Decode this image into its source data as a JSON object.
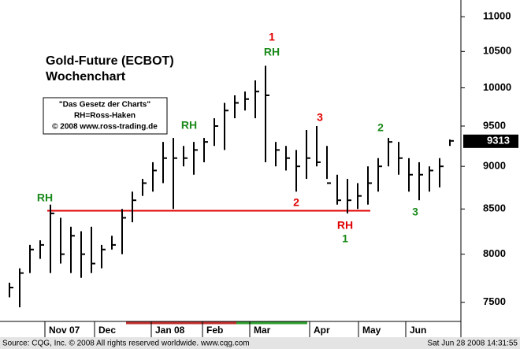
{
  "chart_data": {
    "type": "ohlc",
    "title": "Gold-Future (ECBOT)",
    "subtitle": "Wochenchart",
    "info_box": [
      "\"Das Gesetz der Charts\"",
      "RH=Ross-Haken",
      "© 2008 www.ross-trading.de"
    ],
    "source": "Source: CQG, Inc. © 2008 All rights reserved worldwide. www.cqg.com",
    "timestamp": "Sat Jun 28 2008 14:31:55",
    "log_scale": true,
    "ylim": [
      7310,
      11250
    ],
    "yticks": [
      7500,
      8000,
      8500,
      9000,
      9500,
      10000,
      10500,
      11000
    ],
    "month_labels": [
      "Nov 07",
      "Dec",
      "Jan 08",
      "Feb",
      "Mar",
      "Apr",
      "May",
      "Jun"
    ],
    "bar_color": "#000000",
    "series": [
      {
        "name": "High",
        "values": [
          7700,
          7850,
          8100,
          8150,
          8550,
          8400,
          8300,
          8250,
          8300,
          8100,
          8200,
          8500,
          8700,
          8850,
          9050,
          9300,
          9350,
          9250,
          9300,
          9350,
          9600,
          9800,
          9900,
          9950,
          10100,
          10300,
          9300,
          9250,
          9200,
          9450,
          9500,
          9250,
          8900,
          8850,
          8800,
          9000,
          9100,
          9350,
          9300,
          9100,
          9050,
          9000,
          9100,
          9330
        ]
      },
      {
        "name": "Low",
        "values": [
          7550,
          7450,
          7800,
          7950,
          7800,
          7900,
          7800,
          7750,
          7800,
          7850,
          8050,
          8000,
          8350,
          8650,
          8700,
          8800,
          8500,
          9000,
          8900,
          9050,
          9250,
          9200,
          9600,
          9700,
          9600,
          9050,
          9000,
          8950,
          8700,
          8850,
          9000,
          8850,
          8550,
          8450,
          8500,
          8550,
          8700,
          9000,
          8900,
          8700,
          8600,
          8700,
          8750,
          9250
        ]
      },
      {
        "name": "Close",
        "values": [
          7650,
          7800,
          8050,
          8100,
          8450,
          8000,
          8200,
          8000,
          7900,
          8050,
          8100,
          8400,
          8600,
          8800,
          8950,
          9100,
          9100,
          9100,
          9200,
          9300,
          9500,
          9700,
          9800,
          9850,
          9950,
          9900,
          9200,
          9100,
          9000,
          9100,
          9050,
          8800,
          8600,
          8600,
          8650,
          8800,
          9000,
          9300,
          9100,
          8900,
          8900,
          8950,
          9000,
          9313
        ]
      }
    ],
    "reference_line": {
      "value": 8480,
      "color": "#e00000"
    },
    "annotations": [
      {
        "text": "RH",
        "color": "#1a8a1a"
      },
      {
        "text": "RH",
        "color": "#1a8a1a"
      },
      {
        "text": "1",
        "color": "#e00000"
      },
      {
        "text": "RH",
        "color": "#1a8a1a"
      },
      {
        "text": "3",
        "color": "#e00000"
      },
      {
        "text": "2",
        "color": "#1a8a1a"
      },
      {
        "text": "2",
        "color": "#e00000"
      },
      {
        "text": "RH",
        "color": "#e00000"
      },
      {
        "text": "1",
        "color": "#1a8a1a"
      },
      {
        "text": "3",
        "color": "#1a8a1a"
      }
    ]
  }
}
